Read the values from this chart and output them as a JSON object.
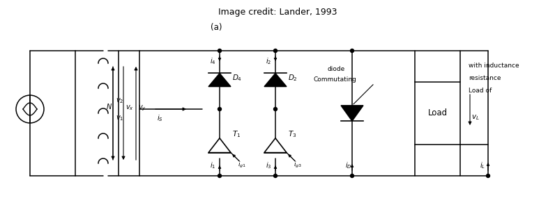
{
  "caption": "Image credit: Lander, 1993",
  "background": "#ffffff",
  "line_color": "#000000",
  "fig_width": 7.96,
  "fig_height": 2.95,
  "dpi": 100,
  "xlim": [
    0,
    796
  ],
  "ylim": [
    0,
    295
  ]
}
